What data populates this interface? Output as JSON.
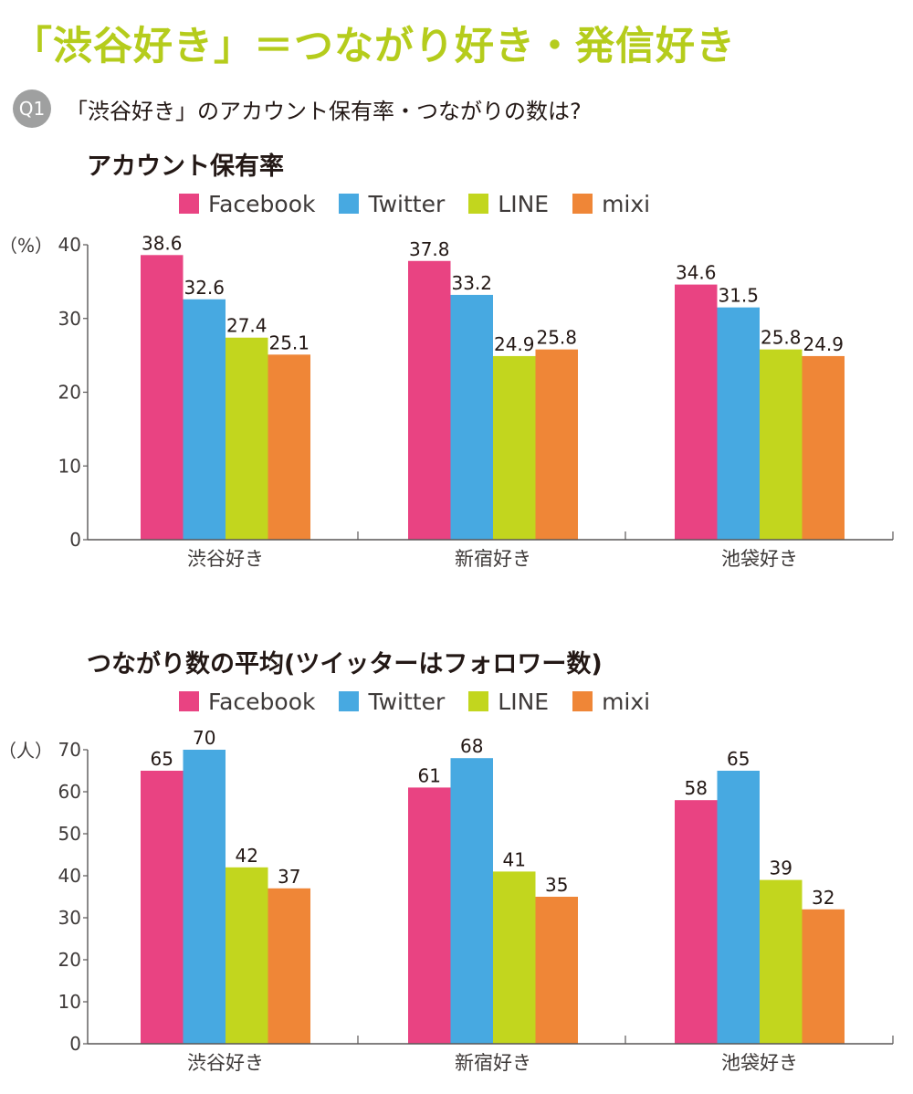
{
  "headline": "「渋谷好き」＝つながり好き・発信好き",
  "question": {
    "badge": "Q1",
    "text": "「渋谷好き」のアカウント保有率・つながりの数は?"
  },
  "colors": {
    "Facebook": "#e94382",
    "Twitter": "#47a9e1",
    "LINE": "#c2d61e",
    "mixi": "#ef8637"
  },
  "chart_data": [
    {
      "type": "bar",
      "title": "アカウント保有率",
      "unit": "（%）",
      "categories": [
        "渋谷好き",
        "新宿好き",
        "池袋好き"
      ],
      "ylim": [
        0,
        40
      ],
      "yticks": [
        0,
        10,
        20,
        30,
        40
      ],
      "legend_position": "top",
      "series": [
        {
          "name": "Facebook",
          "color": "#e94382",
          "values": [
            38.6,
            37.8,
            34.6
          ],
          "labels": [
            "38.6",
            "37.8",
            "34.6"
          ]
        },
        {
          "name": "Twitter",
          "color": "#47a9e1",
          "values": [
            32.6,
            33.2,
            31.5
          ],
          "labels": [
            "32.6",
            "33.2",
            "31.5"
          ]
        },
        {
          "name": "LINE",
          "color": "#c2d61e",
          "values": [
            27.4,
            24.9,
            25.8
          ],
          "labels": [
            "27.4",
            "24.9",
            "25.8"
          ]
        },
        {
          "name": "mixi",
          "color": "#ef8637",
          "values": [
            25.1,
            25.8,
            24.9
          ],
          "labels": [
            "25.1",
            "25.8",
            "24.9"
          ]
        }
      ]
    },
    {
      "type": "bar",
      "title": "つながり数の平均(ツイッターはフォロワー数)",
      "unit": "（人）",
      "categories": [
        "渋谷好き",
        "新宿好き",
        "池袋好き"
      ],
      "ylim": [
        0,
        70
      ],
      "yticks": [
        0,
        10,
        20,
        30,
        40,
        50,
        60,
        70
      ],
      "legend_position": "top",
      "series": [
        {
          "name": "Facebook",
          "color": "#e94382",
          "values": [
            65,
            61,
            58
          ],
          "labels": [
            "65",
            "61",
            "58"
          ]
        },
        {
          "name": "Twitter",
          "color": "#47a9e1",
          "values": [
            70,
            68,
            65
          ],
          "labels": [
            "70",
            "68",
            "65"
          ]
        },
        {
          "name": "LINE",
          "color": "#c2d61e",
          "values": [
            42,
            41,
            39
          ],
          "labels": [
            "42",
            "41",
            "39"
          ]
        },
        {
          "name": "mixi",
          "color": "#ef8637",
          "values": [
            37,
            35,
            32
          ],
          "labels": [
            "37",
            "35",
            "32"
          ]
        }
      ]
    }
  ]
}
